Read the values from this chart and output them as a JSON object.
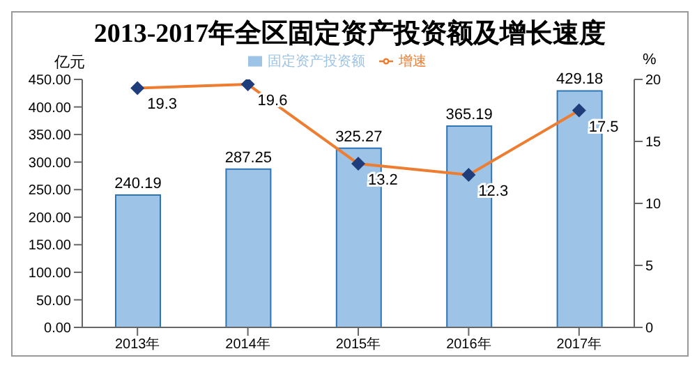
{
  "chart_data": {
    "type": "bar",
    "title": "2013-2017年全区固定资产投资额及增长速度",
    "ylabel": "亿元",
    "y2label": "%",
    "categories": [
      "2013年",
      "2014年",
      "2015年",
      "2016年",
      "2017年"
    ],
    "series": [
      {
        "name": "固定资产投资额",
        "color": "#9dc3e6",
        "values": [
          240.19,
          287.25,
          325.27,
          365.19,
          429.18
        ]
      },
      {
        "name": "增速",
        "type": "line",
        "axis": "y2",
        "color": "#ed7d31",
        "values": [
          19.3,
          19.6,
          13.2,
          12.3,
          17.5
        ]
      }
    ],
    "ylim": [
      0,
      450
    ],
    "yticks": [
      {
        "value": 0,
        "label": "0.00"
      },
      {
        "value": 50,
        "label": "50.00"
      },
      {
        "value": 100,
        "label": "100.00"
      },
      {
        "value": 150,
        "label": "150.00"
      },
      {
        "value": 200,
        "label": "200.00"
      },
      {
        "value": 250,
        "label": "250.00"
      },
      {
        "value": 300,
        "label": "300.00"
      },
      {
        "value": 350,
        "label": "350.00"
      },
      {
        "value": 400,
        "label": "400.00"
      },
      {
        "value": 450,
        "label": "450.00"
      }
    ],
    "y2lim": [
      0,
      20
    ],
    "y2ticks": [
      0,
      5,
      10,
      15,
      20
    ],
    "data_labels": true,
    "legend": "top",
    "grid": false,
    "marker": "diamond",
    "line_style": "solid"
  }
}
